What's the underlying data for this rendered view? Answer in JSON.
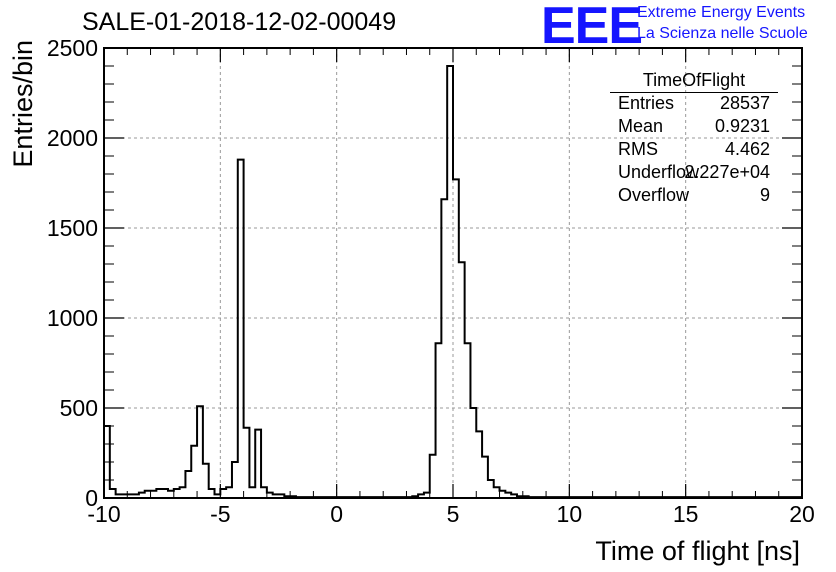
{
  "header": {
    "title": "SALE-01-2018-12-02-00049",
    "logo_text": "EEE",
    "logo_line1": "Extreme Energy Events",
    "logo_line2": "La Scienza nelle Scuole",
    "brand_color": "#1515ff"
  },
  "stats": {
    "title": "TimeOfFlight",
    "rows": [
      {
        "label": "Entries",
        "value": "28537"
      },
      {
        "label": "Mean",
        "value": "0.9231"
      },
      {
        "label": "RMS",
        "value": "4.462"
      },
      {
        "label": "Underflow",
        "value": "2.227e+04"
      },
      {
        "label": "Overflow",
        "value": "9"
      }
    ]
  },
  "chart_data": {
    "type": "histogram",
    "title": "SALE-01-2018-12-02-00049",
    "xlabel": "Time of flight [ns]",
    "ylabel": "Entries/bin",
    "xlim": [
      -10,
      20
    ],
    "ylim": [
      0,
      2500
    ],
    "x_ticks": [
      -10,
      -5,
      0,
      5,
      10,
      15,
      20
    ],
    "y_ticks": [
      0,
      500,
      1000,
      1500,
      2000,
      2500
    ],
    "grid": true,
    "line_color": "#000000",
    "bin_width": 0.25,
    "x_start": -10,
    "values": [
      400,
      50,
      20,
      20,
      20,
      20,
      30,
      40,
      40,
      50,
      50,
      40,
      50,
      60,
      150,
      290,
      510,
      190,
      50,
      20,
      50,
      60,
      200,
      1880,
      390,
      60,
      380,
      60,
      30,
      20,
      20,
      10,
      10,
      5,
      5,
      5,
      5,
      5,
      5,
      5,
      5,
      5,
      5,
      5,
      5,
      5,
      5,
      5,
      5,
      5,
      5,
      5,
      5,
      10,
      20,
      30,
      240,
      860,
      1660,
      2400,
      1770,
      1310,
      860,
      500,
      370,
      230,
      100,
      60,
      40,
      30,
      20,
      10,
      10,
      5,
      5,
      5,
      5,
      5,
      5,
      5,
      5,
      5,
      5,
      5,
      5,
      5,
      5,
      5,
      5,
      5,
      5,
      5,
      5,
      5,
      5,
      5,
      5,
      5,
      5,
      5,
      5,
      5,
      5,
      5,
      5,
      5,
      5,
      5,
      5,
      5,
      5,
      5,
      5,
      5,
      5,
      5,
      5,
      5,
      5,
      5
    ]
  }
}
